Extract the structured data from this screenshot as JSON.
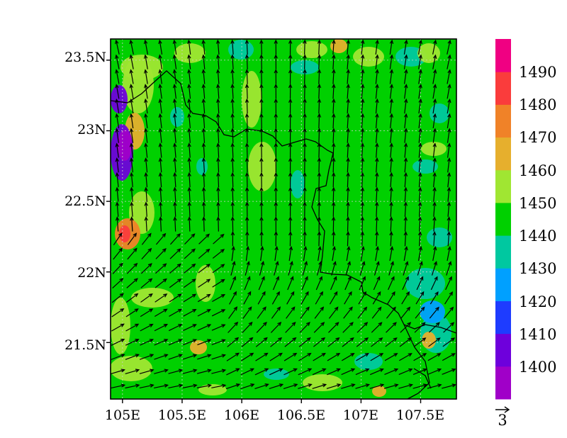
{
  "map": {
    "lat_labels": [
      "23.5N",
      "23N",
      "22.5N",
      "22N",
      "21.5N"
    ],
    "lat_values": [
      23.5,
      23.0,
      22.5,
      22.0,
      21.5
    ],
    "lon_labels": [
      "105E",
      "105.5E",
      "106E",
      "106.5E",
      "107E",
      "107.5E"
    ],
    "lon_values": [
      105.0,
      105.5,
      106.0,
      106.5,
      107.0,
      107.5
    ],
    "extent": {
      "lon_min": 104.9,
      "lon_max": 107.8,
      "lat_min": 21.1,
      "lat_max": 23.65
    },
    "grid_lines": "dotted",
    "field_background_color": "#00d000",
    "vector_color": "#000000",
    "border_color": "#000000"
  },
  "colorbar": {
    "labels": [
      "1400",
      "1410",
      "1420",
      "1430",
      "1440",
      "1450",
      "1460",
      "1470",
      "1480",
      "1490"
    ],
    "colors": [
      "#a000c8",
      "#6e00dc",
      "#1e3cff",
      "#00a0ff",
      "#00c8a0",
      "#00d000",
      "#a0e632",
      "#e6af2d",
      "#f08228",
      "#fa3c3c",
      "#f00082"
    ]
  },
  "vector_legend": {
    "value": "3"
  }
}
